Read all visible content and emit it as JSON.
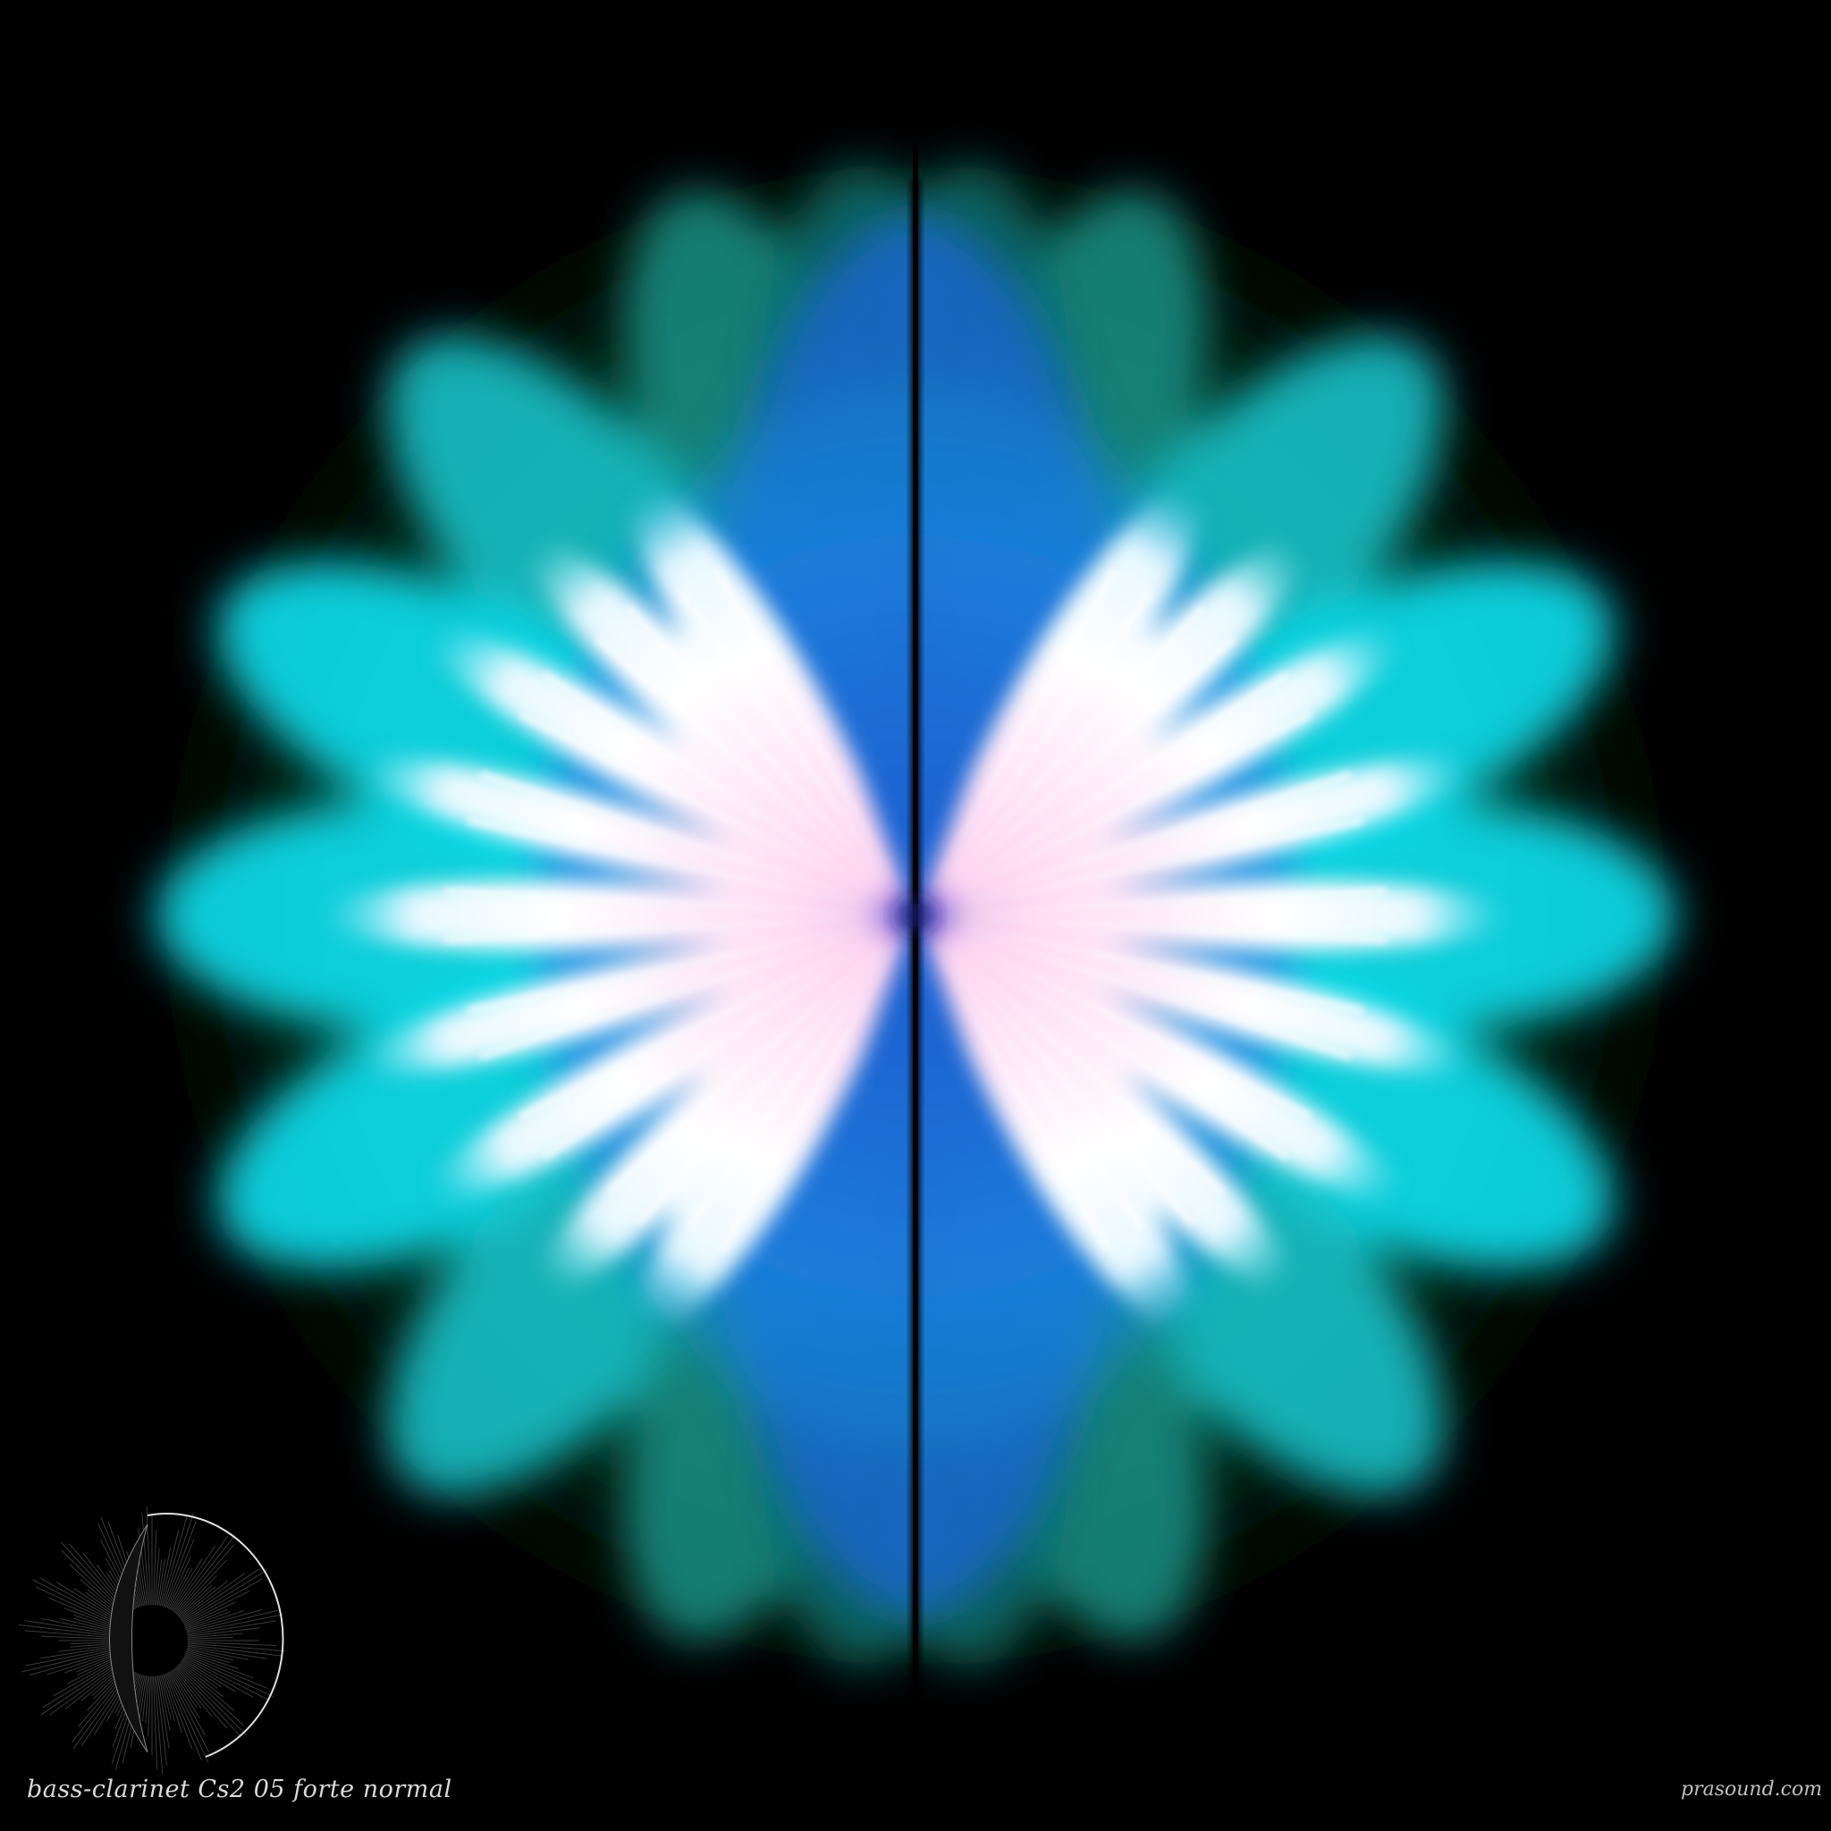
{
  "caption": {
    "title": "bass-clarinet Cs2 05 forte normal",
    "site": "prasound.com"
  },
  "colors": {
    "background": "#000000",
    "outer_glow": "#0a4a22",
    "teal": "#1fb8a8",
    "cyan": "#14e0f0",
    "blue": "#1a78e8",
    "core": "#fff0ff",
    "pink": "#ffd8f5"
  },
  "icons": {
    "logo": "circular-waveform-logo-icon"
  }
}
